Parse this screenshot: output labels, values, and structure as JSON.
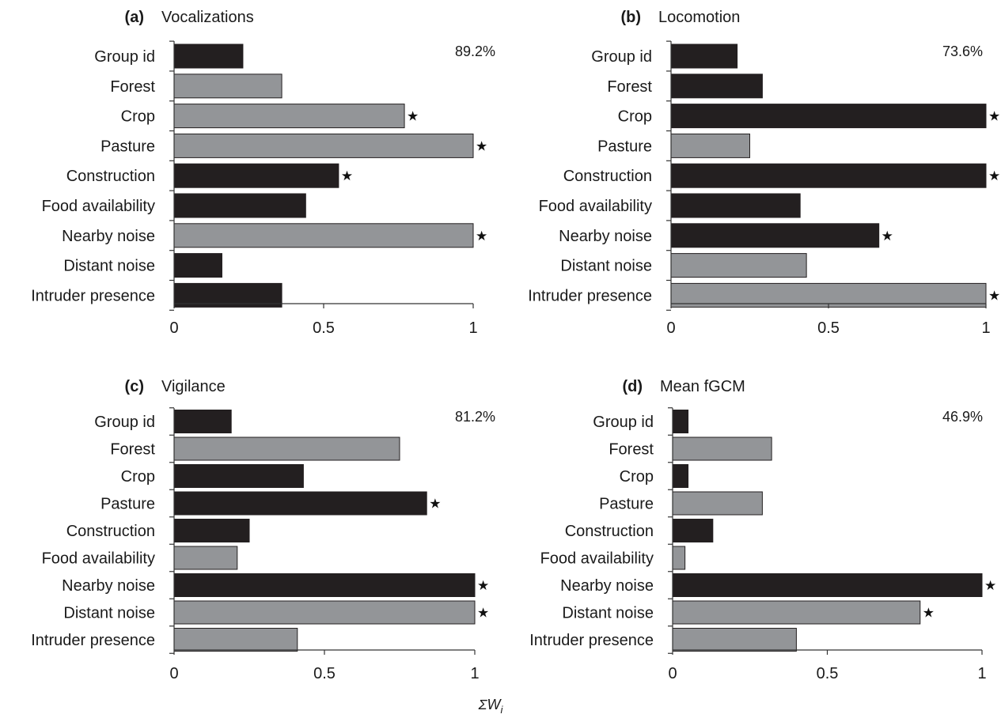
{
  "chart_data": [
    {
      "type": "bar",
      "panel_label": "(a)",
      "title": "Vocalizations",
      "annotation": "89.2%",
      "categories": [
        "Group id",
        "Forest",
        "Crop",
        "Pasture",
        "Construction",
        "Food availability",
        "Nearby noise",
        "Distant noise",
        "Intruder presence"
      ],
      "values": [
        0.23,
        0.36,
        0.77,
        1.0,
        0.55,
        0.44,
        1.0,
        0.16,
        0.36
      ],
      "bar_shade": [
        "dark",
        "grey",
        "grey",
        "grey",
        "dark",
        "dark",
        "grey",
        "dark",
        "dark"
      ],
      "significant": [
        false,
        false,
        true,
        true,
        true,
        false,
        true,
        false,
        false
      ],
      "xlim": [
        0,
        1
      ],
      "xticks": [
        "0",
        "0.5",
        "1"
      ]
    },
    {
      "type": "bar",
      "panel_label": "(b)",
      "title": "Locomotion",
      "annotation": "73.6%",
      "categories": [
        "Group id",
        "Forest",
        "Crop",
        "Pasture",
        "Construction",
        "Food availability",
        "Nearby noise",
        "Distant noise",
        "Intruder presence"
      ],
      "values": [
        0.21,
        0.29,
        1.0,
        0.25,
        1.0,
        0.41,
        0.66,
        0.43,
        1.0
      ],
      "bar_shade": [
        "dark",
        "dark",
        "dark",
        "grey",
        "dark",
        "dark",
        "dark",
        "grey",
        "grey"
      ],
      "significant": [
        false,
        false,
        true,
        false,
        true,
        false,
        true,
        false,
        true
      ],
      "xlim": [
        0,
        1
      ],
      "xticks": [
        "0",
        "0.5",
        "1"
      ]
    },
    {
      "type": "bar",
      "panel_label": "(c)",
      "title": "Vigilance",
      "annotation": "81.2%",
      "categories": [
        "Group id",
        "Forest",
        "Crop",
        "Pasture",
        "Construction",
        "Food availability",
        "Nearby noise",
        "Distant noise",
        "Intruder presence"
      ],
      "values": [
        0.19,
        0.75,
        0.43,
        0.84,
        0.25,
        0.21,
        1.0,
        1.0,
        0.41
      ],
      "bar_shade": [
        "dark",
        "grey",
        "dark",
        "dark",
        "dark",
        "grey",
        "dark",
        "grey",
        "grey"
      ],
      "significant": [
        false,
        false,
        false,
        true,
        false,
        false,
        true,
        true,
        false
      ],
      "xlim": [
        0,
        1
      ],
      "xticks": [
        "0",
        "0.5",
        "1"
      ]
    },
    {
      "type": "bar",
      "panel_label": "(d)",
      "title": "Mean fGCM",
      "annotation": "46.9%",
      "categories": [
        "Group id",
        "Forest",
        "Crop",
        "Pasture",
        "Construction",
        "Food availability",
        "Nearby noise",
        "Distant noise",
        "Intruder presence"
      ],
      "values": [
        0.05,
        0.32,
        0.05,
        0.29,
        0.13,
        0.04,
        1.0,
        0.8,
        0.4
      ],
      "bar_shade": [
        "dark",
        "grey",
        "dark",
        "grey",
        "dark",
        "grey",
        "dark",
        "grey",
        "grey"
      ],
      "significant": [
        false,
        false,
        false,
        false,
        false,
        false,
        true,
        true,
        false
      ],
      "xlim": [
        0,
        1
      ],
      "xticks": [
        "0",
        "0.5",
        "1"
      ]
    }
  ],
  "shared_xlabel": "ΣW",
  "shared_xlabel_subscript": "i",
  "colors": {
    "dark": "#231f20",
    "grey": "#939598",
    "outline": "#231f20"
  },
  "significance_marker": "★"
}
